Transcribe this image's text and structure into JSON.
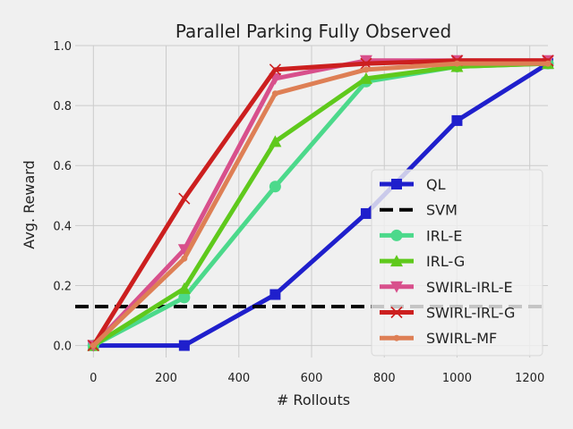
{
  "chart_data": {
    "type": "line",
    "title": "Parallel Parking Fully Observed",
    "xlabel": "# Rollouts",
    "ylabel": "Avg. Reward",
    "xlim": [
      -50,
      1250
    ],
    "ylim": [
      -0.04,
      1.0
    ],
    "xticks": [
      0,
      200,
      400,
      600,
      800,
      1000,
      1200
    ],
    "yticks": [
      0.0,
      0.2,
      0.4,
      0.6,
      0.8,
      1.0
    ],
    "xtick_labels": [
      "0",
      "200",
      "400",
      "600",
      "800",
      "1000",
      "1200"
    ],
    "ytick_labels": [
      "0.0",
      "0.2",
      "0.4",
      "0.6",
      "0.8",
      "1.0"
    ],
    "grid": true,
    "legend_position": "lower right",
    "series": [
      {
        "name": "QL",
        "color": "#1f1fcc",
        "marker": "square",
        "dashed": false,
        "x": [
          0,
          250,
          500,
          750,
          1000,
          1250
        ],
        "y": [
          0.0,
          0.0,
          0.17,
          0.44,
          0.75,
          0.94
        ]
      },
      {
        "name": "SVM",
        "color": "#000000",
        "marker": "none",
        "dashed": true,
        "x": [
          -50,
          1250
        ],
        "y": [
          0.13,
          0.13
        ]
      },
      {
        "name": "IRL-E",
        "color": "#4cd98b",
        "marker": "circle",
        "dashed": false,
        "x": [
          0,
          250,
          500,
          750,
          1000,
          1250
        ],
        "y": [
          0.0,
          0.16,
          0.53,
          0.88,
          0.93,
          0.94
        ]
      },
      {
        "name": "IRL-G",
        "color": "#5fc91c",
        "marker": "triangle-up",
        "dashed": false,
        "x": [
          0,
          250,
          500,
          750,
          1000,
          1250
        ],
        "y": [
          0.0,
          0.19,
          0.68,
          0.89,
          0.93,
          0.94
        ]
      },
      {
        "name": "SWIRL-IRL-E",
        "color": "#d8508c",
        "marker": "triangle-down",
        "dashed": false,
        "x": [
          0,
          250,
          500,
          750,
          1000,
          1250
        ],
        "y": [
          0.0,
          0.32,
          0.89,
          0.95,
          0.95,
          0.95
        ]
      },
      {
        "name": "SWIRL-IRL-G",
        "color": "#cc1f1f",
        "marker": "x",
        "dashed": false,
        "x": [
          0,
          250,
          500,
          750,
          1000,
          1250
        ],
        "y": [
          0.0,
          0.49,
          0.92,
          0.94,
          0.95,
          0.95
        ]
      },
      {
        "name": "SWIRL-MF",
        "color": "#de7f55",
        "marker": "small-circle",
        "dashed": false,
        "x": [
          0,
          250,
          500,
          750,
          1000,
          1250
        ],
        "y": [
          0.0,
          0.29,
          0.84,
          0.92,
          0.94,
          0.94
        ]
      }
    ]
  }
}
